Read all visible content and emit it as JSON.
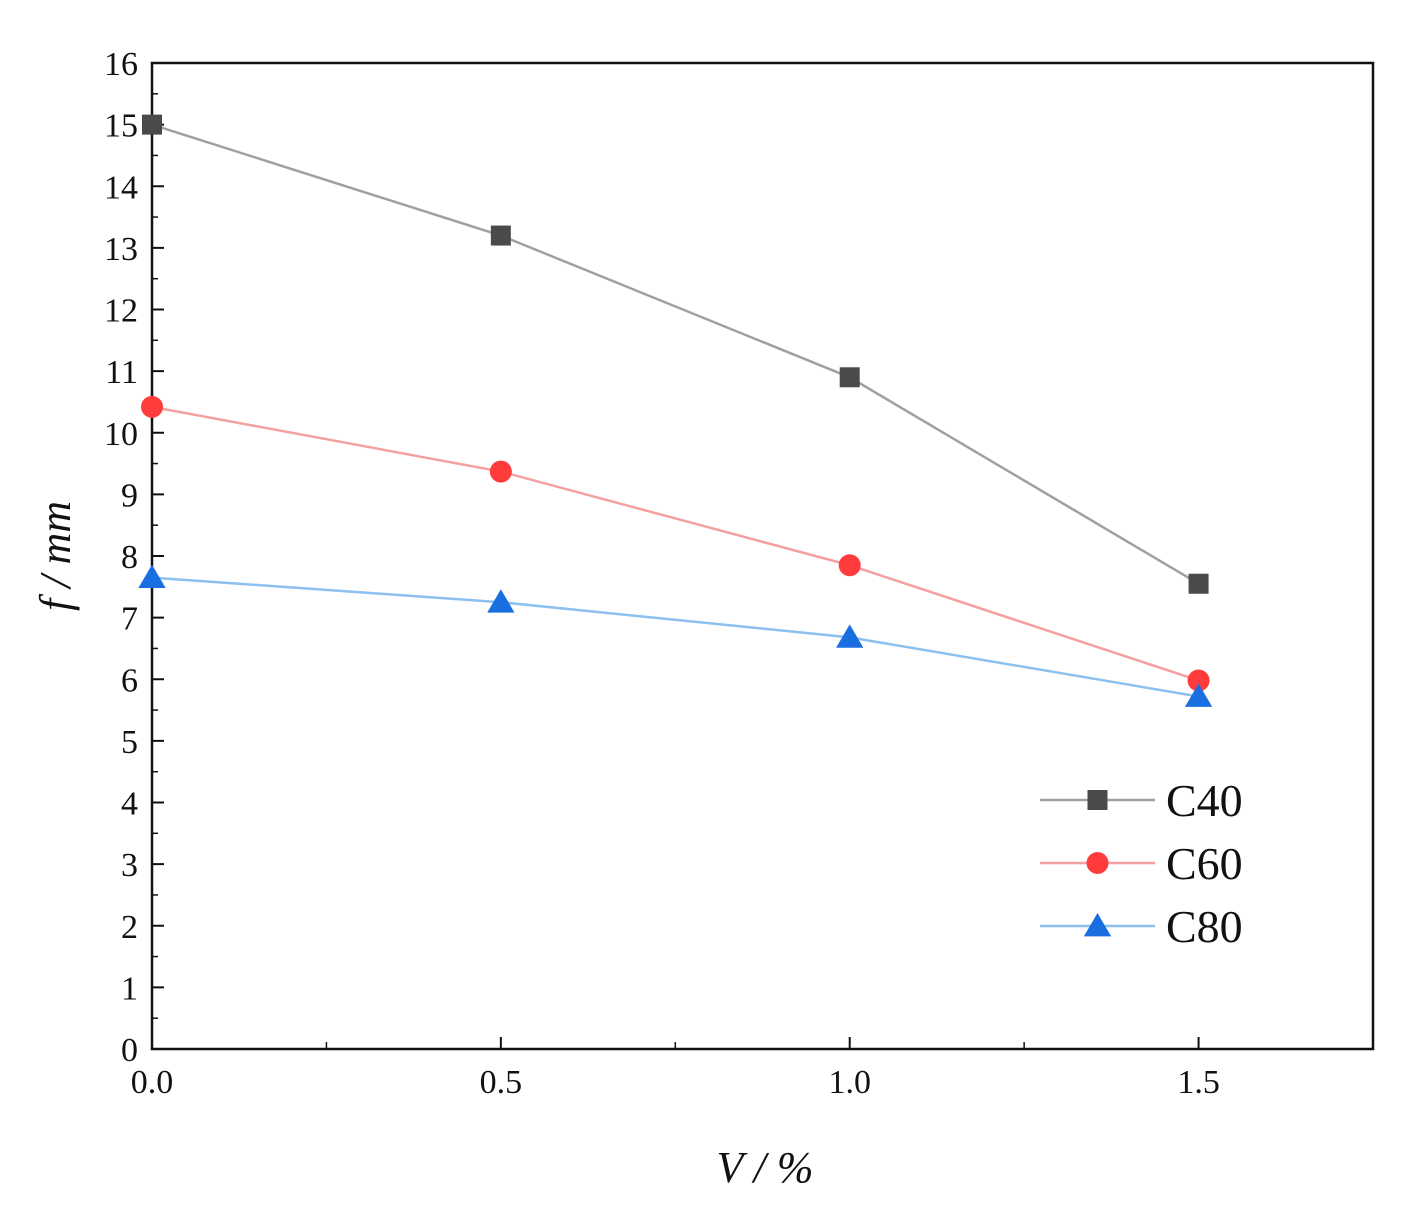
{
  "chart_data": {
    "type": "line",
    "title": "",
    "xlabel": "V / %",
    "ylabel": "f / mm",
    "xlim": [
      0,
      1.75
    ],
    "ylim": [
      0,
      16
    ],
    "x_ticks": [
      "0.0",
      "0.5",
      "1.0",
      "1.5"
    ],
    "x_tick_values": [
      0,
      0.5,
      1.0,
      1.5
    ],
    "x_minor_ticks": [
      0.25,
      0.75,
      1.25
    ],
    "y_ticks": [
      "0",
      "1",
      "2",
      "3",
      "4",
      "5",
      "6",
      "7",
      "8",
      "9",
      "10",
      "11",
      "12",
      "13",
      "14",
      "15",
      "16"
    ],
    "y_tick_values": [
      0,
      1,
      2,
      3,
      4,
      5,
      6,
      7,
      8,
      9,
      10,
      11,
      12,
      13,
      14,
      15,
      16
    ],
    "x": [
      0,
      0.5,
      1.0,
      1.5
    ],
    "series": [
      {
        "name": "C40",
        "marker": "square",
        "color": "#4a4a4a",
        "line_color": "#a0a0a0",
        "values": [
          15.0,
          13.2,
          10.9,
          7.55
        ]
      },
      {
        "name": "C60",
        "marker": "circle",
        "color": "#ff3b3b",
        "line_color": "#f4a0a0",
        "values": [
          10.42,
          9.37,
          7.85,
          5.98
        ]
      },
      {
        "name": "C80",
        "marker": "triangle",
        "color": "#1a6fe0",
        "line_color": "#8cc0ee",
        "values": [
          7.65,
          7.25,
          6.68,
          5.72
        ]
      }
    ],
    "legend_position": "bottom-right",
    "grid": false
  }
}
